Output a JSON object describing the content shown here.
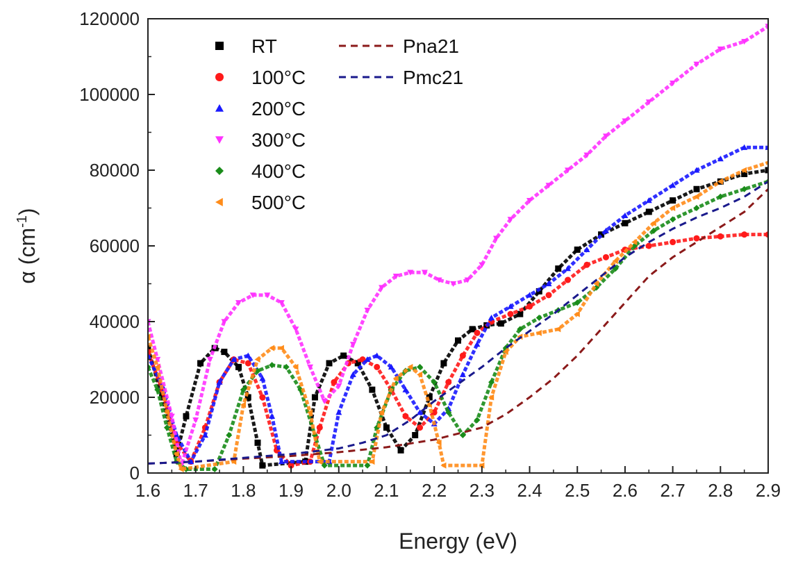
{
  "chart_data": {
    "type": "scatter",
    "xlabel": "Energy (eV)",
    "ylabel": "α (cm-1)",
    "ylabel_main": "α (cm",
    "ylabel_sup": "-1",
    "ylabel_close": ")",
    "xlim": [
      1.6,
      2.9
    ],
    "ylim": [
      0,
      120000
    ],
    "x_ticks": [
      1.6,
      1.7,
      1.8,
      1.9,
      2.0,
      2.1,
      2.2,
      2.3,
      2.4,
      2.5,
      2.6,
      2.7,
      2.8,
      2.9
    ],
    "x_tick_labels": [
      "1.6",
      "1.7",
      "1.8",
      "1.9",
      "2.0",
      "2.1",
      "2.2",
      "2.3",
      "2.4",
      "2.5",
      "2.6",
      "2.7",
      "2.8",
      "2.9"
    ],
    "y_ticks": [
      0,
      20000,
      40000,
      60000,
      80000,
      100000,
      120000
    ],
    "y_tick_labels": [
      "0",
      "20000",
      "40000",
      "60000",
      "80000",
      "100000",
      "120000"
    ],
    "grid": false,
    "legend_position": "top-left",
    "series": [
      {
        "name": "RT",
        "marker": "square",
        "color": "#000000",
        "x": [
          1.6,
          1.63,
          1.66,
          1.68,
          1.71,
          1.74,
          1.76,
          1.79,
          1.81,
          1.83,
          1.84,
          1.93,
          1.95,
          1.98,
          2.01,
          2.04,
          2.07,
          2.1,
          2.13,
          2.16,
          2.19,
          2.22,
          2.25,
          2.28,
          2.31,
          2.34,
          2.38,
          2.42,
          2.46,
          2.5,
          2.55,
          2.6,
          2.65,
          2.7,
          2.75,
          2.8,
          2.85,
          2.9
        ],
        "y": [
          33000,
          20000,
          5000,
          15000,
          29000,
          33000,
          32000,
          28000,
          20000,
          8000,
          2000,
          3000,
          20000,
          29000,
          31000,
          29000,
          22000,
          12000,
          6000,
          10000,
          20000,
          29000,
          35000,
          38000,
          39000,
          39500,
          42000,
          48000,
          54000,
          59000,
          63000,
          66000,
          69000,
          72000,
          75000,
          77000,
          79000,
          80000
        ]
      },
      {
        "name": "100°C",
        "marker": "circle",
        "color": "#ff1a1a",
        "x": [
          1.6,
          1.63,
          1.66,
          1.69,
          1.72,
          1.75,
          1.78,
          1.81,
          1.84,
          1.87,
          1.9,
          1.94,
          1.96,
          1.99,
          2.02,
          2.05,
          2.08,
          2.11,
          2.14,
          2.17,
          2.2,
          2.23,
          2.26,
          2.29,
          2.32,
          2.36,
          2.4,
          2.44,
          2.48,
          2.52,
          2.56,
          2.6,
          2.65,
          2.7,
          2.75,
          2.8,
          2.85,
          2.9
        ],
        "y": [
          32000,
          22000,
          8000,
          3000,
          12000,
          24000,
          30000,
          29000,
          20000,
          6000,
          2000,
          3000,
          12000,
          24000,
          29000,
          30000,
          28000,
          22000,
          15000,
          12000,
          16000,
          24000,
          31000,
          37000,
          40000,
          42000,
          44000,
          47000,
          51000,
          55000,
          57000,
          59000,
          60000,
          61000,
          62000,
          62500,
          63000,
          63000
        ]
      },
      {
        "name": "200°C",
        "marker": "triangle-up",
        "color": "#1a1aff",
        "x": [
          1.6,
          1.63,
          1.66,
          1.69,
          1.72,
          1.75,
          1.78,
          1.81,
          1.84,
          1.86,
          1.88,
          1.98,
          2.0,
          2.03,
          2.06,
          2.08,
          2.11,
          2.14,
          2.17,
          2.2,
          2.23,
          2.26,
          2.29,
          2.32,
          2.36,
          2.4,
          2.44,
          2.48,
          2.52,
          2.56,
          2.6,
          2.65,
          2.7,
          2.75,
          2.8,
          2.85,
          2.9
        ],
        "y": [
          31000,
          23000,
          10000,
          3000,
          10000,
          24000,
          30000,
          31000,
          25000,
          15000,
          3000,
          3000,
          16000,
          26000,
          30000,
          31000,
          28000,
          22000,
          16000,
          13000,
          17000,
          26000,
          34000,
          41000,
          44000,
          47000,
          50000,
          54000,
          59000,
          64000,
          68000,
          72000,
          76000,
          80000,
          83000,
          86000,
          86000
        ]
      },
      {
        "name": "300°C",
        "marker": "triangle-down",
        "color": "#ff33ff",
        "x": [
          1.6,
          1.62,
          1.65,
          1.67,
          1.7,
          1.73,
          1.76,
          1.79,
          1.82,
          1.85,
          1.88,
          1.91,
          1.94,
          1.97,
          2.0,
          2.03,
          2.06,
          2.09,
          2.12,
          2.15,
          2.18,
          2.21,
          2.24,
          2.27,
          2.3,
          2.33,
          2.36,
          2.4,
          2.44,
          2.48,
          2.52,
          2.56,
          2.6,
          2.65,
          2.7,
          2.75,
          2.8,
          2.85,
          2.9
        ],
        "y": [
          40000,
          30000,
          15000,
          2000,
          14000,
          30000,
          40000,
          45000,
          47000,
          47000,
          45000,
          38000,
          28000,
          19000,
          23000,
          34000,
          43000,
          49000,
          52000,
          53000,
          53000,
          51000,
          50000,
          51000,
          55000,
          62000,
          67000,
          72000,
          76000,
          80000,
          84000,
          89000,
          93000,
          98000,
          103000,
          108000,
          112000,
          114000,
          118000
        ]
      },
      {
        "name": "400°C",
        "marker": "diamond",
        "color": "#1a8c1a",
        "x": [
          1.6,
          1.62,
          1.64,
          1.66,
          1.68,
          1.74,
          1.77,
          1.8,
          1.83,
          1.86,
          1.89,
          1.92,
          1.95,
          1.97,
          2.06,
          2.08,
          2.11,
          2.14,
          2.17,
          2.2,
          2.23,
          2.26,
          2.29,
          2.32,
          2.35,
          2.38,
          2.42,
          2.46,
          2.5,
          2.54,
          2.58,
          2.62,
          2.66,
          2.7,
          2.75,
          2.8,
          2.85,
          2.9
        ],
        "y": [
          28000,
          22000,
          12000,
          3000,
          1000,
          1000,
          10000,
          22000,
          27000,
          28500,
          28000,
          22000,
          10000,
          2000,
          2000,
          12000,
          22000,
          27000,
          28000,
          24000,
          16000,
          10000,
          14000,
          24000,
          33000,
          38000,
          41000,
          43000,
          45000,
          49000,
          54000,
          60000,
          64000,
          67000,
          70000,
          73000,
          75000,
          77000
        ]
      },
      {
        "name": "500°C",
        "marker": "triangle-left",
        "color": "#ff8c1a",
        "x": [
          1.6,
          1.62,
          1.64,
          1.66,
          1.67,
          1.78,
          1.8,
          1.83,
          1.86,
          1.88,
          1.91,
          1.94,
          1.96,
          2.07,
          2.09,
          2.12,
          2.15,
          2.17,
          2.19,
          2.21,
          2.22,
          2.3,
          2.32,
          2.35,
          2.38,
          2.42,
          2.46,
          2.5,
          2.54,
          2.58,
          2.62,
          2.66,
          2.7,
          2.75,
          2.8,
          2.85,
          2.9
        ],
        "y": [
          36000,
          28000,
          16000,
          5000,
          1000,
          3000,
          18000,
          30000,
          33000,
          33000,
          28000,
          16000,
          3000,
          3000,
          16000,
          25000,
          28000,
          26000,
          18000,
          8000,
          2000,
          2000,
          20000,
          32000,
          36000,
          37000,
          38000,
          42000,
          50000,
          56000,
          61000,
          66000,
          70000,
          73000,
          77000,
          80000,
          82000
        ]
      },
      {
        "name": "Pna21",
        "marker": "dashed-line",
        "color": "#8b1a1a",
        "x": [
          1.6,
          1.7,
          1.8,
          1.9,
          2.0,
          2.1,
          2.2,
          2.3,
          2.35,
          2.4,
          2.45,
          2.5,
          2.55,
          2.6,
          2.65,
          2.7,
          2.75,
          2.8,
          2.85,
          2.9
        ],
        "y": [
          2500,
          3000,
          3800,
          4500,
          5500,
          6800,
          8800,
          12000,
          15500,
          20000,
          25000,
          31000,
          38000,
          45000,
          52000,
          57000,
          61000,
          65000,
          69000,
          75000
        ]
      },
      {
        "name": "Pmc21",
        "marker": "dashed-line",
        "color": "#1a1a8c",
        "x": [
          1.6,
          1.7,
          1.8,
          1.9,
          2.0,
          2.05,
          2.1,
          2.15,
          2.2,
          2.25,
          2.3,
          2.35,
          2.4,
          2.45,
          2.5,
          2.55,
          2.6,
          2.65,
          2.7,
          2.75,
          2.8,
          2.85,
          2.9
        ],
        "y": [
          2500,
          3000,
          4000,
          5000,
          6500,
          8000,
          10000,
          14000,
          19000,
          23500,
          28000,
          33000,
          37500,
          42000,
          47000,
          52000,
          57000,
          61000,
          64500,
          67500,
          70000,
          73000,
          77000
        ]
      }
    ]
  }
}
